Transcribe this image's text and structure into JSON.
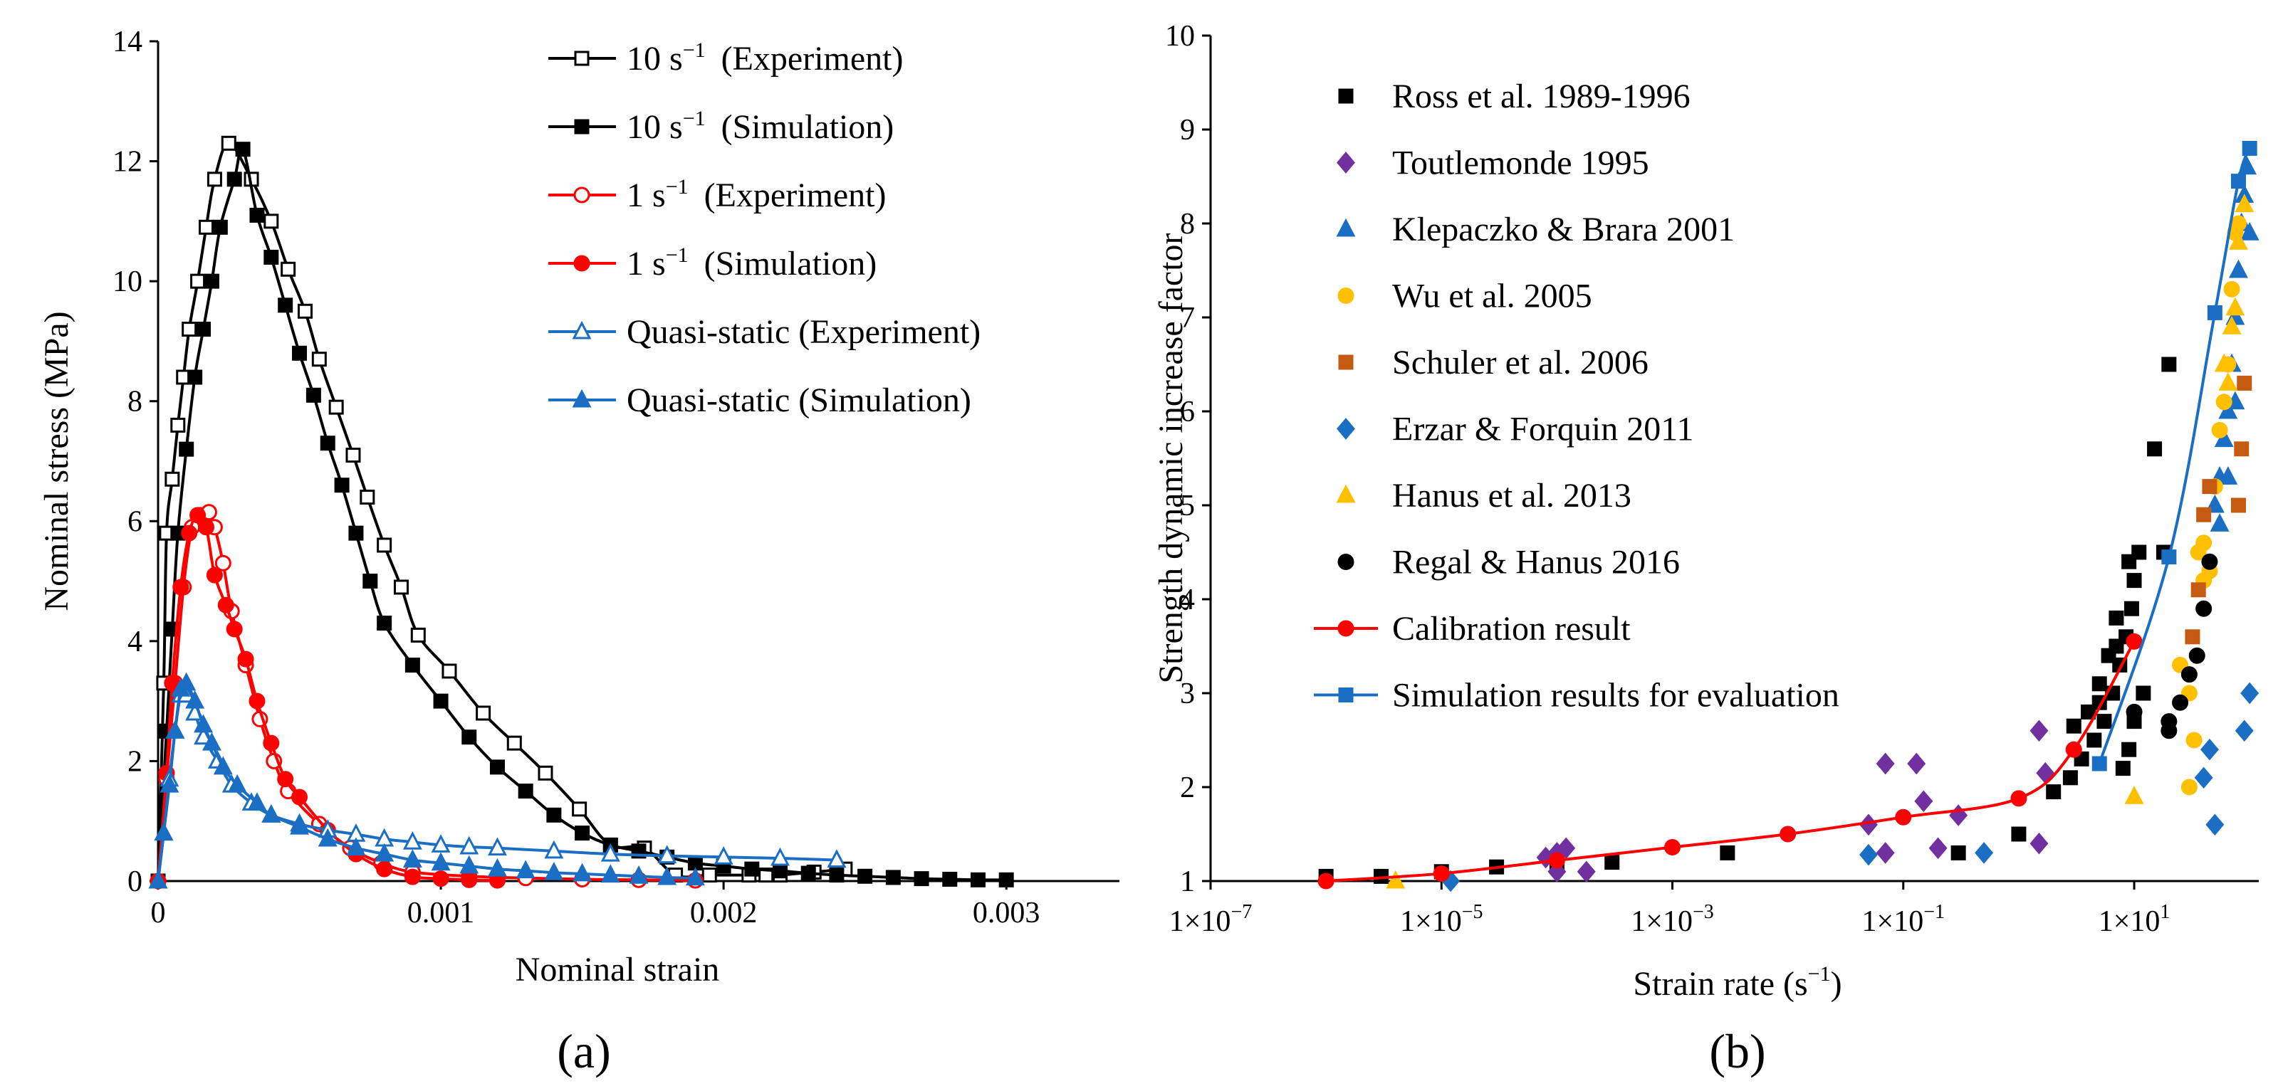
{
  "chart_data": [
    {
      "panel": "a",
      "type": "line",
      "panel_label": "(a)",
      "xlabel": "Nominal strain",
      "ylabel": "Nominal stress (MPa)",
      "xlim": [
        0,
        0.0034
      ],
      "ylim": [
        0,
        14
      ],
      "x_ticks": [
        0,
        0.001,
        0.002,
        0.003
      ],
      "x_tick_labels": [
        "0",
        "0.001",
        "0.002",
        "0.003"
      ],
      "y_ticks": [
        0,
        2,
        4,
        6,
        8,
        10,
        12,
        14
      ],
      "y_tick_labels": [
        "0",
        "2",
        "4",
        "6",
        "8",
        "10",
        "12",
        "14"
      ],
      "grid": false,
      "legend_position": "top-right",
      "series": [
        {
          "name": "10 s",
          "sup": "−1",
          "cond": "(Experiment)",
          "color": "#000000",
          "marker": "square",
          "filled": false,
          "x": [
            0,
            2e-05,
            3e-05,
            5e-05,
            7e-05,
            9e-05,
            0.00011,
            0.00014,
            0.00017,
            0.0002,
            0.00025,
            0.00033,
            0.0004,
            0.00046,
            0.00052,
            0.00057,
            0.00063,
            0.00069,
            0.00074,
            0.0008,
            0.00086,
            0.00092,
            0.00103,
            0.00115,
            0.00126,
            0.00137,
            0.00149,
            0.0016,
            0.00172,
            0.00183,
            0.00195,
            0.00209,
            0.00215,
            0.0022,
            0.00232,
            0.00243
          ],
          "y": [
            0,
            3.3,
            5.8,
            6.7,
            7.6,
            8.4,
            9.2,
            10.0,
            10.9,
            11.7,
            12.3,
            11.7,
            11.0,
            10.2,
            9.5,
            8.7,
            7.9,
            7.1,
            6.4,
            5.6,
            4.9,
            4.1,
            3.5,
            2.8,
            2.3,
            1.8,
            1.2,
            0.6,
            0.55,
            0.1,
            0.1,
            0.1,
            0.1,
            0.1,
            0.15,
            0.2
          ]
        },
        {
          "name": "10 s",
          "sup": "−1",
          "cond": "(Simulation)",
          "color": "#000000",
          "marker": "square",
          "filled": true,
          "x": [
            0,
            3e-05,
            5e-05,
            7e-05,
            0.0001,
            0.00013,
            0.00016,
            0.00019,
            0.00022,
            0.00027,
            0.0003,
            0.00035,
            0.0004,
            0.00045,
            0.0005,
            0.00055,
            0.0006,
            0.00065,
            0.0007,
            0.00075,
            0.0008,
            0.0009,
            0.001,
            0.0011,
            0.0012,
            0.0013,
            0.0014,
            0.0015,
            0.0016,
            0.0017,
            0.0018,
            0.0019,
            0.002,
            0.0021,
            0.0022,
            0.0023,
            0.0024,
            0.0025,
            0.0026,
            0.0027,
            0.0028,
            0.0029,
            0.003
          ],
          "y": [
            0,
            2.5,
            4.2,
            5.8,
            7.2,
            8.4,
            9.2,
            10.0,
            10.9,
            11.7,
            12.2,
            11.1,
            10.4,
            9.6,
            8.8,
            8.1,
            7.3,
            6.6,
            5.8,
            5.0,
            4.3,
            3.6,
            3.0,
            2.4,
            1.9,
            1.5,
            1.1,
            0.8,
            0.6,
            0.5,
            0.4,
            0.3,
            0.25,
            0.2,
            0.17,
            0.13,
            0.1,
            0.08,
            0.06,
            0.04,
            0.03,
            0.02,
            0.02
          ]
        },
        {
          "name": "1 s",
          "sup": "−1",
          "cond": "(Experiment)",
          "color": "#ff0000",
          "marker": "circle",
          "filled": false,
          "x": [
            0,
            3e-05,
            6e-05,
            9e-05,
            0.00012,
            0.00015,
            0.00018,
            0.0002,
            0.00023,
            0.00026,
            0.00031,
            0.00036,
            0.00041,
            0.00046,
            0.00057,
            0.00068,
            0.00079,
            0.0009,
            0.0011,
            0.0013,
            0.0015,
            0.0017,
            0.0019
          ],
          "y": [
            0,
            1.7,
            3.3,
            4.9,
            5.9,
            6.1,
            6.15,
            5.9,
            5.3,
            4.5,
            3.6,
            2.7,
            2.0,
            1.5,
            0.95,
            0.55,
            0.3,
            0.15,
            0.08,
            0.05,
            0.03,
            0.02,
            0.01
          ]
        },
        {
          "name": "1 s",
          "sup": "−1",
          "cond": "(Simulation)",
          "color": "#ff0000",
          "marker": "circle",
          "filled": true,
          "x": [
            0,
            3e-05,
            5e-05,
            8e-05,
            0.00011,
            0.00014,
            0.00017,
            0.0002,
            0.00024,
            0.00027,
            0.00031,
            0.00035,
            0.0004,
            0.00045,
            0.0005,
            0.0006,
            0.0007,
            0.0008,
            0.0009,
            0.001,
            0.0011,
            0.0012
          ],
          "y": [
            0,
            1.8,
            3.3,
            4.9,
            5.8,
            6.1,
            5.9,
            5.1,
            4.6,
            4.2,
            3.7,
            3.0,
            2.3,
            1.7,
            1.4,
            0.85,
            0.45,
            0.2,
            0.07,
            0.04,
            0.02,
            0.01
          ]
        },
        {
          "name": "Quasi-static",
          "sup": "",
          "cond": "(Experiment)",
          "color": "#1a6fc4",
          "marker": "triangle",
          "filled": false,
          "x": [
            0,
            2e-05,
            4e-05,
            6e-05,
            8e-05,
            0.0001,
            0.00013,
            0.00016,
            0.00021,
            0.00026,
            0.00033,
            0.0004,
            0.0005,
            0.0006,
            0.0007,
            0.0008,
            0.0009,
            0.001,
            0.0011,
            0.0012,
            0.0014,
            0.0016,
            0.0018,
            0.002,
            0.0022,
            0.0024
          ],
          "y": [
            0,
            0.8,
            1.7,
            2.5,
            3.1,
            3.1,
            2.8,
            2.4,
            2.0,
            1.6,
            1.3,
            1.1,
            0.95,
            0.85,
            0.78,
            0.7,
            0.65,
            0.6,
            0.57,
            0.55,
            0.5,
            0.45,
            0.42,
            0.4,
            0.38,
            0.35
          ]
        },
        {
          "name": "Quasi-static",
          "sup": "",
          "cond": "(Simulation)",
          "color": "#1a6fc4",
          "marker": "triangle",
          "filled": true,
          "x": [
            0,
            2e-05,
            4e-05,
            6e-05,
            8e-05,
            0.0001,
            0.00013,
            0.00016,
            0.00019,
            0.00023,
            0.00028,
            0.00035,
            0.0004,
            0.0005,
            0.0006,
            0.0007,
            0.0008,
            0.0009,
            0.001,
            0.0011,
            0.0012,
            0.0013,
            0.0014,
            0.0015,
            0.0016,
            0.0017,
            0.0018,
            0.0019
          ],
          "y": [
            0,
            0.8,
            1.6,
            2.5,
            3.2,
            3.3,
            3.0,
            2.6,
            2.3,
            1.9,
            1.6,
            1.3,
            1.1,
            0.9,
            0.7,
            0.55,
            0.45,
            0.35,
            0.3,
            0.25,
            0.2,
            0.17,
            0.14,
            0.12,
            0.1,
            0.08,
            0.06,
            0.05
          ]
        }
      ]
    },
    {
      "panel": "b",
      "type": "scatter",
      "panel_label": "(b)",
      "xlabel": "Strain rate  (s",
      "xlabel_sup": "−1",
      "xlabel_tail": ")",
      "ylabel": "Strength dynamic increase factor",
      "x_scale": "log",
      "xlim": [
        1e-07,
        120
      ],
      "ylim": [
        1,
        10
      ],
      "x_ticks": [
        1e-07,
        1e-05,
        0.001,
        0.1,
        10
      ],
      "x_tick_labels": [
        {
          "base": "1×10",
          "exp": "−7"
        },
        {
          "base": "1×10",
          "exp": "−5"
        },
        {
          "base": "1×10",
          "exp": "−3"
        },
        {
          "base": "1×10",
          "exp": "−1"
        },
        {
          "base": "1×10",
          "exp": "1"
        }
      ],
      "y_ticks": [
        1,
        2,
        3,
        4,
        5,
        6,
        7,
        8,
        9,
        10
      ],
      "y_tick_labels": [
        "1",
        "2",
        "3",
        "4",
        "5",
        "6",
        "7",
        "8",
        "9",
        "10"
      ],
      "grid": false,
      "legend_position": "top-left",
      "series": [
        {
          "name": "Ross et al. 1989-1996",
          "color": "#000000",
          "marker": "square",
          "filled": true,
          "line": false,
          "x": [
            1e-06,
            3e-06,
            1e-05,
            3e-05,
            0.0001,
            0.0003,
            0.003,
            0.3,
            1,
            2,
            2.8,
            3.5,
            4.5,
            5.5,
            6.5,
            7.5,
            8.5,
            9.5,
            10,
            11,
            4,
            5,
            6,
            7,
            8,
            9,
            10,
            12,
            15,
            18,
            20,
            3,
            5,
            7,
            9
          ],
          "y": [
            1.05,
            1.05,
            1.1,
            1.15,
            1.2,
            1.2,
            1.3,
            1.3,
            1.5,
            1.95,
            2.1,
            2.3,
            2.5,
            2.7,
            3.0,
            3.3,
            3.6,
            3.9,
            4.2,
            4.5,
            2.8,
            3.1,
            3.4,
            3.8,
            2.2,
            2.4,
            2.7,
            3.0,
            5.6,
            4.5,
            6.5,
            2.65,
            2.9,
            3.5,
            4.4
          ]
        },
        {
          "name": "Toutlemonde 1995",
          "color": "#7030a0",
          "marker": "diamond",
          "filled": true,
          "line": false,
          "x": [
            8e-05,
            0.0001,
            0.00012,
            0.0001,
            0.00018,
            0.05,
            0.07,
            0.07,
            0.13,
            0.15,
            0.2,
            0.3,
            1.5,
            1.7,
            1.5
          ],
          "y": [
            1.25,
            1.3,
            1.35,
            1.1,
            1.1,
            1.6,
            1.3,
            2.25,
            2.25,
            1.85,
            1.35,
            1.7,
            2.6,
            2.15,
            1.4
          ]
        },
        {
          "name": "Klepaczko & Brara 2001",
          "color": "#1a6fc4",
          "marker": "triangle",
          "filled": true,
          "line": false,
          "x": [
            50,
            55,
            60,
            65,
            70,
            75,
            80,
            85,
            90,
            95,
            100,
            55,
            65,
            75
          ],
          "y": [
            5.0,
            5.3,
            5.7,
            6.0,
            6.5,
            7.0,
            7.5,
            8.0,
            8.3,
            8.6,
            7.9,
            4.8,
            5.3,
            6.1
          ]
        },
        {
          "name": "Wu et al. 2005",
          "color": "#ffc000",
          "marker": "circle",
          "filled": true,
          "line": false,
          "x": [
            25,
            30,
            33,
            36,
            40,
            45,
            50,
            55,
            60,
            65,
            70,
            75,
            80,
            30,
            40
          ],
          "y": [
            3.3,
            3.0,
            2.5,
            4.5,
            4.6,
            4.3,
            5.2,
            5.8,
            6.1,
            6.5,
            7.3,
            7.9,
            8.0,
            2.0,
            4.2
          ]
        },
        {
          "name": "Schuler et al. 2006",
          "color": "#c55a11",
          "marker": "square",
          "filled": true,
          "line": false,
          "x": [
            32,
            36,
            40,
            45,
            80,
            85,
            90
          ],
          "y": [
            3.6,
            4.1,
            4.9,
            5.2,
            5.0,
            5.6,
            6.3
          ]
        },
        {
          "name": "Erzar & Forquin 2011",
          "color": "#1a6fc4",
          "marker": "diamond",
          "filled": true,
          "line": false,
          "x": [
            1.2e-05,
            0.05,
            0.5,
            40,
            45,
            90,
            100,
            50
          ],
          "y": [
            1.0,
            1.28,
            1.3,
            2.1,
            2.4,
            2.6,
            3.0,
            1.6
          ]
        },
        {
          "name": "Hanus et al. 2013",
          "color": "#ffc000",
          "marker": "triangle",
          "filled": true,
          "line": false,
          "x": [
            4e-06,
            10,
            60,
            70,
            80,
            90,
            65,
            75
          ],
          "y": [
            1.0,
            1.9,
            6.5,
            6.9,
            7.8,
            8.2,
            6.3,
            7.1
          ]
        },
        {
          "name": "Regal & Hanus 2016",
          "color": "#000000",
          "marker": "circle",
          "filled": true,
          "line": false,
          "x": [
            10,
            20,
            25,
            30,
            35,
            40,
            45,
            20
          ],
          "y": [
            2.8,
            2.6,
            2.9,
            3.2,
            3.4,
            3.9,
            4.4,
            2.7
          ]
        },
        {
          "name": "Calibration result",
          "color": "#ff0000",
          "marker": "circle",
          "filled": true,
          "line": true,
          "smooth": true,
          "x": [
            1e-06,
            1e-05,
            0.0001,
            0.001,
            0.01,
            0.1,
            1,
            3,
            10
          ],
          "y": [
            1.0,
            1.08,
            1.22,
            1.36,
            1.5,
            1.68,
            1.88,
            2.4,
            3.55
          ]
        },
        {
          "name": "Simulation results for evaluation",
          "color": "#1a6fc4",
          "marker": "square",
          "filled": true,
          "line": true,
          "smooth": true,
          "x": [
            5,
            20,
            50,
            80,
            100
          ],
          "y": [
            2.25,
            4.45,
            7.05,
            8.45,
            8.8
          ]
        }
      ]
    }
  ]
}
